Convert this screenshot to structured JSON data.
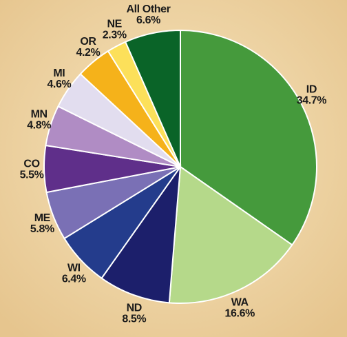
{
  "chart_data": {
    "type": "pie",
    "categories": [
      "ID",
      "WA",
      "ND",
      "WI",
      "ME",
      "CO",
      "MN",
      "MI",
      "OR",
      "NE",
      "All Other"
    ],
    "values": [
      34.7,
      16.6,
      8.5,
      6.4,
      5.8,
      5.5,
      4.8,
      4.6,
      4.2,
      2.3,
      6.6
    ],
    "value_labels": [
      "34.7%",
      "16.6%",
      "8.5%",
      "6.4%",
      "5.8%",
      "5.5%",
      "4.8%",
      "4.6%",
      "4.2%",
      "2.3%",
      "6.6%"
    ],
    "colors": [
      "#459a3c",
      "#b5d98a",
      "#1c1f6b",
      "#243c8c",
      "#7a70b5",
      "#5f2f8a",
      "#b08cc4",
      "#e2ddef",
      "#f5b21a",
      "#fce05a",
      "#0a6428"
    ]
  }
}
